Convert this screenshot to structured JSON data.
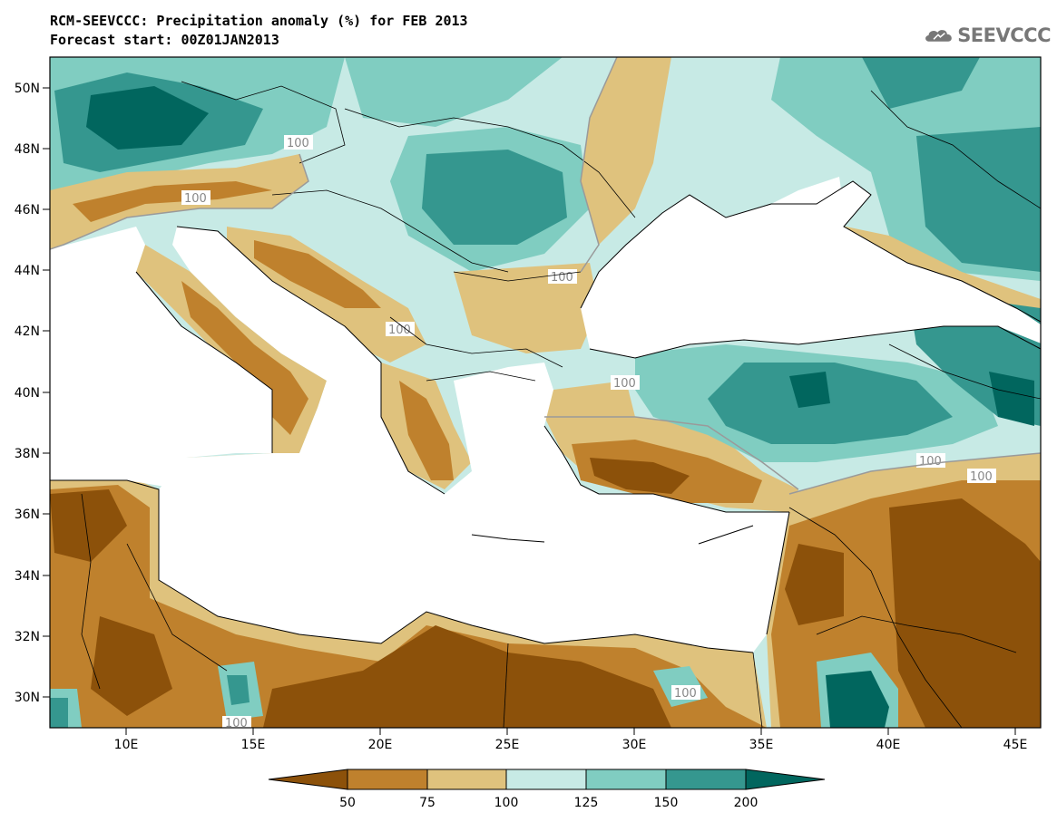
{
  "title": {
    "line1": "RCM-SEEVCCC: Precipitation anomaly (%) for FEB 2013",
    "line2": "Forecast start: 00Z01JAN2013"
  },
  "logo": {
    "text": "SEEVCCC",
    "icon": "cloud-icon"
  },
  "map": {
    "projection": "lat-lon",
    "lon_range": [
      7,
      46
    ],
    "lat_range": [
      29,
      51
    ],
    "lon_ticks": [
      "10E",
      "15E",
      "20E",
      "25E",
      "30E",
      "35E",
      "40E",
      "45E"
    ],
    "lat_ticks": [
      "50N",
      "48N",
      "46N",
      "44N",
      "42N",
      "40N",
      "38N",
      "36N",
      "34N",
      "32N",
      "30N"
    ],
    "contour_labels": [
      "100",
      "100",
      "100",
      "100",
      "100",
      "100",
      "100",
      "100",
      "100"
    ]
  },
  "colorbar": {
    "bounds": [
      "50",
      "75",
      "100",
      "125",
      "150",
      "200"
    ],
    "colors": [
      "#8c510a",
      "#bf812d",
      "#dfc27d",
      "#c7eae5",
      "#80cdc1",
      "#35978f",
      "#01665e"
    ]
  }
}
